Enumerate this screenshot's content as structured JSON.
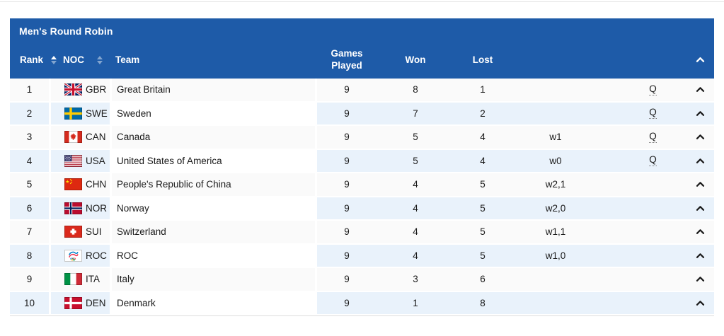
{
  "page": {
    "top_divider_color": "#e4e4e4"
  },
  "table": {
    "title": "Men's Round Robin",
    "columns": {
      "rank": "Rank",
      "noc": "NOC",
      "team": "Team",
      "games_played": "Games Played",
      "won": "Won",
      "lost": "Lost",
      "tiebreak": "",
      "qualified": ""
    },
    "icons": {
      "rank_sort": "sort-arrows-icon",
      "noc_sort": "sort-arrows-icon",
      "header_collapse": "chevron-up-icon",
      "row_expand": "chevron-up-icon"
    },
    "colors": {
      "header_bg": "#1e5ba8",
      "header_text": "#ffffff",
      "row_odd_bg": "#fafafa",
      "row_even_bg": "#e9f2fb",
      "body_text": "#1a1a1a",
      "bottom_border": "#dcdcdc"
    },
    "rows": [
      {
        "rank": "1",
        "noc": "GBR",
        "flag_icon": "flag-gbr-icon",
        "team": "Great Britain",
        "games_played": "9",
        "won": "8",
        "lost": "1",
        "tiebreak": "",
        "qualified": "Q"
      },
      {
        "rank": "2",
        "noc": "SWE",
        "flag_icon": "flag-swe-icon",
        "team": "Sweden",
        "games_played": "9",
        "won": "7",
        "lost": "2",
        "tiebreak": "",
        "qualified": "Q"
      },
      {
        "rank": "3",
        "noc": "CAN",
        "flag_icon": "flag-can-icon",
        "team": "Canada",
        "games_played": "9",
        "won": "5",
        "lost": "4",
        "tiebreak": "w1",
        "qualified": "Q"
      },
      {
        "rank": "4",
        "noc": "USA",
        "flag_icon": "flag-usa-icon",
        "team": "United States of America",
        "games_played": "9",
        "won": "5",
        "lost": "4",
        "tiebreak": "w0",
        "qualified": "Q"
      },
      {
        "rank": "5",
        "noc": "CHN",
        "flag_icon": "flag-chn-icon",
        "team": "People's Republic of China",
        "games_played": "9",
        "won": "4",
        "lost": "5",
        "tiebreak": "w2,1",
        "qualified": ""
      },
      {
        "rank": "6",
        "noc": "NOR",
        "flag_icon": "flag-nor-icon",
        "team": "Norway",
        "games_played": "9",
        "won": "4",
        "lost": "5",
        "tiebreak": "w2,0",
        "qualified": ""
      },
      {
        "rank": "7",
        "noc": "SUI",
        "flag_icon": "flag-sui-icon",
        "team": "Switzerland",
        "games_played": "9",
        "won": "4",
        "lost": "5",
        "tiebreak": "w1,1",
        "qualified": ""
      },
      {
        "rank": "8",
        "noc": "ROC",
        "flag_icon": "flag-roc-icon",
        "team": "ROC",
        "games_played": "9",
        "won": "4",
        "lost": "5",
        "tiebreak": "w1,0",
        "qualified": ""
      },
      {
        "rank": "9",
        "noc": "ITA",
        "flag_icon": "flag-ita-icon",
        "team": "Italy",
        "games_played": "9",
        "won": "3",
        "lost": "6",
        "tiebreak": "",
        "qualified": ""
      },
      {
        "rank": "10",
        "noc": "DEN",
        "flag_icon": "flag-den-icon",
        "team": "Denmark",
        "games_played": "9",
        "won": "1",
        "lost": "8",
        "tiebreak": "",
        "qualified": ""
      }
    ]
  }
}
